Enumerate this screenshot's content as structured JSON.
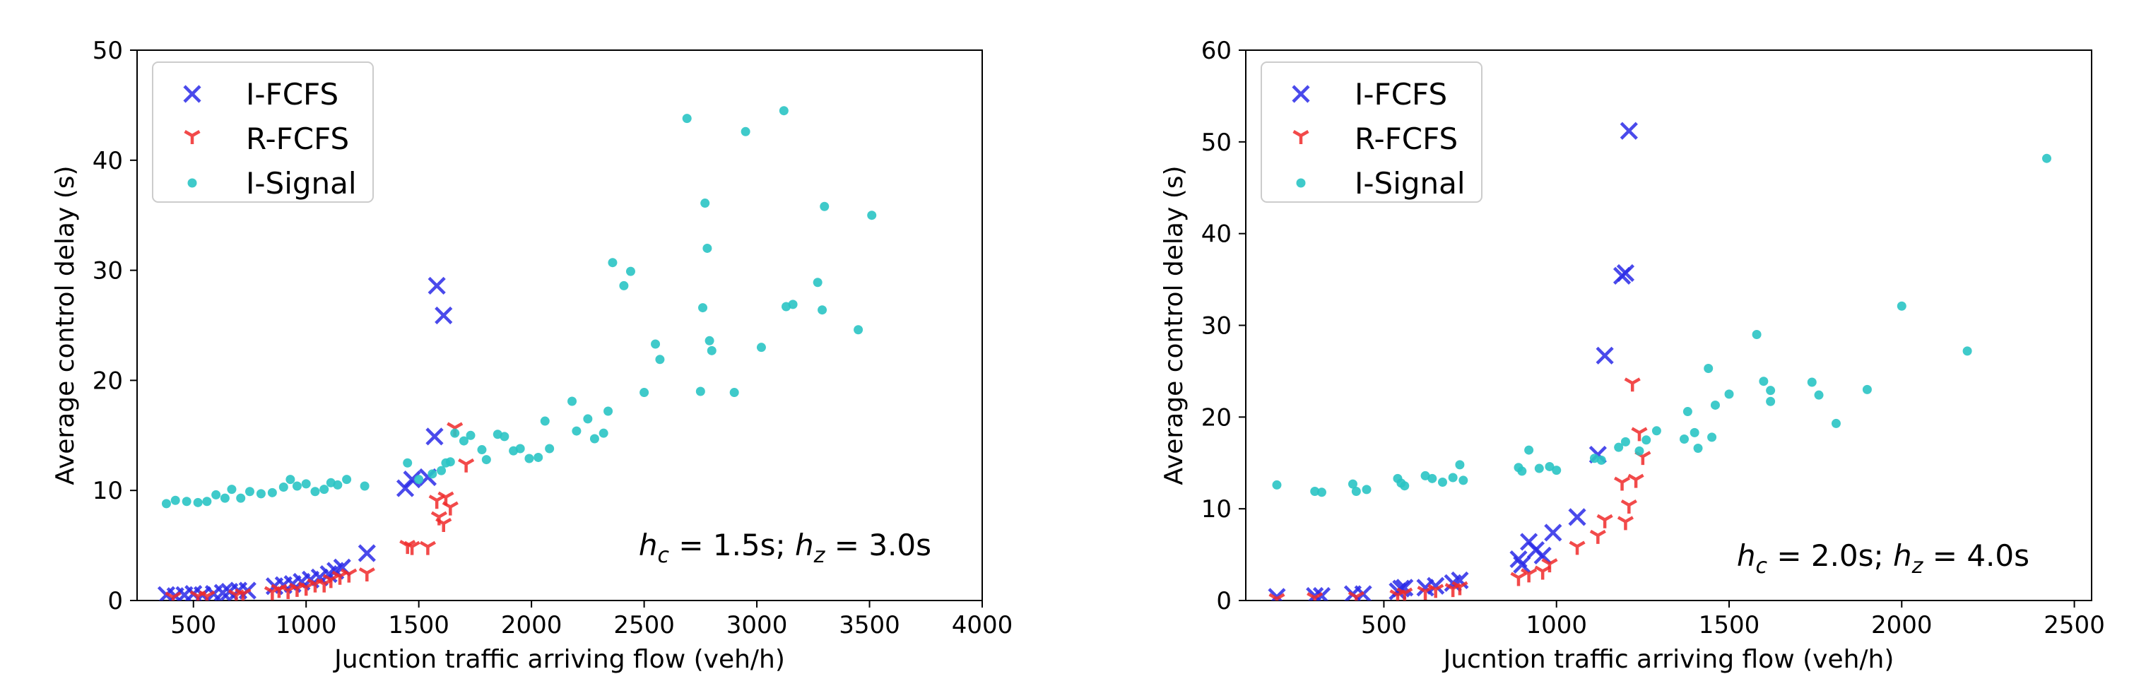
{
  "chart_data": [
    {
      "type": "scatter",
      "title": "",
      "xlabel": "Jucntion traffic arriving flow (veh/h)",
      "ylabel": "Average control delay (s)",
      "xlim": [
        250,
        4000
      ],
      "ylim": [
        0,
        50
      ],
      "xticks": [
        "500",
        "1000",
        "1500",
        "2000",
        "2500",
        "3000",
        "3500",
        "4000"
      ],
      "yticks": [
        "0",
        "10",
        "20",
        "30",
        "40",
        "50"
      ],
      "grid": false,
      "legend_position": "top-left",
      "annotation": {
        "parts": [
          {
            "text": "h",
            "italic": true
          },
          {
            "text": "c",
            "sub": true,
            "italic": true
          },
          {
            "text": " = 1.5s; "
          },
          {
            "text": "h",
            "italic": true
          },
          {
            "text": "z",
            "sub": true,
            "italic": true
          },
          {
            "text": " = 3.0s"
          }
        ]
      },
      "series": [
        {
          "name": "I-FCFS",
          "marker": "x",
          "color": "#2a2ae8",
          "points": [
            [
              380,
              0.5
            ],
            [
              420,
              0.4
            ],
            [
              460,
              0.5
            ],
            [
              500,
              0.6
            ],
            [
              540,
              0.5
            ],
            [
              590,
              0.6
            ],
            [
              630,
              0.7
            ],
            [
              660,
              0.8
            ],
            [
              700,
              0.9
            ],
            [
              740,
              0.9
            ],
            [
              860,
              1.3
            ],
            [
              900,
              1.4
            ],
            [
              940,
              1.5
            ],
            [
              980,
              1.7
            ],
            [
              1020,
              1.9
            ],
            [
              1060,
              2.1
            ],
            [
              1100,
              2.4
            ],
            [
              1130,
              2.7
            ],
            [
              1160,
              3.0
            ],
            [
              1270,
              4.3
            ],
            [
              1440,
              10.2
            ],
            [
              1470,
              11.0
            ],
            [
              1540,
              11.2
            ],
            [
              1570,
              14.9
            ],
            [
              1580,
              28.6
            ],
            [
              1610,
              25.9
            ]
          ]
        },
        {
          "name": "R-FCFS",
          "marker": "tri_down",
          "color": "#f02a2a",
          "points": [
            [
              410,
              0.3
            ],
            [
              520,
              0.4
            ],
            [
              560,
              0.4
            ],
            [
              690,
              0.5
            ],
            [
              720,
              0.6
            ],
            [
              850,
              0.8
            ],
            [
              880,
              1.0
            ],
            [
              920,
              0.9
            ],
            [
              960,
              1.1
            ],
            [
              1000,
              1.2
            ],
            [
              1040,
              1.5
            ],
            [
              1080,
              1.5
            ],
            [
              1110,
              1.9
            ],
            [
              1150,
              2.2
            ],
            [
              1190,
              2.4
            ],
            [
              1270,
              2.5
            ],
            [
              1450,
              5.0
            ],
            [
              1470,
              4.9
            ],
            [
              1540,
              4.9
            ],
            [
              1580,
              9.1
            ],
            [
              1590,
              7.6
            ],
            [
              1610,
              7.0
            ],
            [
              1620,
              9.4
            ],
            [
              1640,
              8.5
            ],
            [
              1660,
              15.7
            ],
            [
              1710,
              12.4
            ]
          ]
        },
        {
          "name": "I-Signal",
          "marker": "dot",
          "color": "#2ac4c4",
          "points": [
            [
              380,
              8.8
            ],
            [
              420,
              9.1
            ],
            [
              470,
              9.0
            ],
            [
              520,
              8.9
            ],
            [
              560,
              9.0
            ],
            [
              600,
              9.6
            ],
            [
              640,
              9.3
            ],
            [
              670,
              10.1
            ],
            [
              710,
              9.3
            ],
            [
              750,
              9.9
            ],
            [
              800,
              9.7
            ],
            [
              850,
              9.8
            ],
            [
              900,
              10.3
            ],
            [
              930,
              11.0
            ],
            [
              960,
              10.4
            ],
            [
              1000,
              10.6
            ],
            [
              1040,
              9.9
            ],
            [
              1080,
              10.1
            ],
            [
              1110,
              10.7
            ],
            [
              1140,
              10.5
            ],
            [
              1180,
              11.0
            ],
            [
              1260,
              10.4
            ],
            [
              1450,
              12.5
            ],
            [
              1500,
              11.0
            ],
            [
              1560,
              11.5
            ],
            [
              1600,
              11.8
            ],
            [
              1620,
              12.5
            ],
            [
              1640,
              12.6
            ],
            [
              1660,
              15.2
            ],
            [
              1700,
              14.5
            ],
            [
              1730,
              15.0
            ],
            [
              1780,
              13.7
            ],
            [
              1800,
              12.8
            ],
            [
              1850,
              15.1
            ],
            [
              1880,
              14.9
            ],
            [
              1920,
              13.6
            ],
            [
              1950,
              13.8
            ],
            [
              1990,
              12.9
            ],
            [
              2030,
              13.0
            ],
            [
              2060,
              16.3
            ],
            [
              2080,
              13.8
            ],
            [
              2180,
              18.1
            ],
            [
              2200,
              15.4
            ],
            [
              2250,
              16.5
            ],
            [
              2280,
              14.7
            ],
            [
              2320,
              15.2
            ],
            [
              2340,
              17.2
            ],
            [
              2360,
              30.7
            ],
            [
              2410,
              28.6
            ],
            [
              2440,
              29.9
            ],
            [
              2500,
              18.9
            ],
            [
              2550,
              23.3
            ],
            [
              2570,
              21.9
            ],
            [
              2690,
              43.8
            ],
            [
              2750,
              19.0
            ],
            [
              2760,
              26.6
            ],
            [
              2770,
              36.1
            ],
            [
              2780,
              32.0
            ],
            [
              2790,
              23.6
            ],
            [
              2800,
              22.7
            ],
            [
              2900,
              18.9
            ],
            [
              2950,
              42.6
            ],
            [
              3020,
              23.0
            ],
            [
              3120,
              44.5
            ],
            [
              3130,
              26.7
            ],
            [
              3160,
              26.9
            ],
            [
              3270,
              28.9
            ],
            [
              3290,
              26.4
            ],
            [
              3300,
              35.8
            ],
            [
              3450,
              24.6
            ],
            [
              3510,
              35.0
            ]
          ]
        }
      ]
    },
    {
      "type": "scatter",
      "title": "",
      "xlabel": "Jucntion traffic arriving flow (veh/h)",
      "ylabel": "Average control delay (s)",
      "xlim": [
        100,
        2550
      ],
      "ylim": [
        0,
        60
      ],
      "xticks": [
        "500",
        "1000",
        "1500",
        "2000",
        "2500"
      ],
      "yticks": [
        "0",
        "10",
        "20",
        "30",
        "40",
        "50",
        "60"
      ],
      "grid": false,
      "legend_position": "top-left",
      "annotation": {
        "parts": [
          {
            "text": "h",
            "italic": true
          },
          {
            "text": "c",
            "sub": true,
            "italic": true
          },
          {
            "text": " = 2.0s; "
          },
          {
            "text": "h",
            "italic": true
          },
          {
            "text": "z",
            "sub": true,
            "italic": true
          },
          {
            "text": " = 4.0s"
          }
        ]
      },
      "series": [
        {
          "name": "I-FCFS",
          "marker": "x",
          "color": "#2a2ae8",
          "points": [
            [
              190,
              0.4
            ],
            [
              300,
              0.5
            ],
            [
              320,
              0.5
            ],
            [
              410,
              0.7
            ],
            [
              440,
              0.7
            ],
            [
              540,
              1.0
            ],
            [
              550,
              1.3
            ],
            [
              560,
              1.4
            ],
            [
              620,
              1.4
            ],
            [
              650,
              1.6
            ],
            [
              700,
              1.9
            ],
            [
              720,
              2.2
            ],
            [
              890,
              4.5
            ],
            [
              900,
              3.9
            ],
            [
              920,
              6.4
            ],
            [
              940,
              5.5
            ],
            [
              960,
              4.9
            ],
            [
              990,
              7.4
            ],
            [
              1060,
              9.1
            ],
            [
              1120,
              15.9
            ],
            [
              1140,
              26.7
            ],
            [
              1190,
              35.4
            ],
            [
              1200,
              35.7
            ],
            [
              1210,
              51.2
            ]
          ]
        },
        {
          "name": "R-FCFS",
          "marker": "tri_down",
          "color": "#f02a2a",
          "points": [
            [
              190,
              0.2
            ],
            [
              300,
              0.3
            ],
            [
              420,
              0.4
            ],
            [
              540,
              0.6
            ],
            [
              560,
              0.8
            ],
            [
              620,
              1.0
            ],
            [
              650,
              1.2
            ],
            [
              700,
              1.3
            ],
            [
              720,
              1.5
            ],
            [
              890,
              2.5
            ],
            [
              920,
              2.9
            ],
            [
              960,
              3.2
            ],
            [
              980,
              4.0
            ],
            [
              1060,
              5.9
            ],
            [
              1120,
              7.1
            ],
            [
              1140,
              8.8
            ],
            [
              1190,
              12.9
            ],
            [
              1200,
              8.6
            ],
            [
              1210,
              10.4
            ],
            [
              1220,
              23.7
            ],
            [
              1230,
              13.2
            ],
            [
              1240,
              18.3
            ],
            [
              1250,
              15.7
            ]
          ]
        },
        {
          "name": "I-Signal",
          "marker": "dot",
          "color": "#2ac4c4",
          "points": [
            [
              190,
              12.6
            ],
            [
              300,
              11.9
            ],
            [
              320,
              11.8
            ],
            [
              410,
              12.7
            ],
            [
              420,
              11.9
            ],
            [
              450,
              12.1
            ],
            [
              540,
              13.3
            ],
            [
              550,
              12.8
            ],
            [
              560,
              12.5
            ],
            [
              620,
              13.6
            ],
            [
              640,
              13.3
            ],
            [
              670,
              12.9
            ],
            [
              700,
              13.4
            ],
            [
              720,
              14.8
            ],
            [
              730,
              13.1
            ],
            [
              890,
              14.5
            ],
            [
              900,
              14.1
            ],
            [
              920,
              16.4
            ],
            [
              950,
              14.4
            ],
            [
              980,
              14.6
            ],
            [
              1000,
              14.2
            ],
            [
              1110,
              15.5
            ],
            [
              1130,
              15.3
            ],
            [
              1180,
              16.7
            ],
            [
              1200,
              17.3
            ],
            [
              1240,
              16.3
            ],
            [
              1260,
              17.5
            ],
            [
              1290,
              18.5
            ],
            [
              1370,
              17.6
            ],
            [
              1380,
              20.6
            ],
            [
              1400,
              18.3
            ],
            [
              1410,
              16.6
            ],
            [
              1440,
              25.3
            ],
            [
              1450,
              17.8
            ],
            [
              1460,
              21.3
            ],
            [
              1500,
              22.5
            ],
            [
              1580,
              29.0
            ],
            [
              1600,
              23.9
            ],
            [
              1620,
              21.7
            ],
            [
              1620,
              22.9
            ],
            [
              1740,
              23.8
            ],
            [
              1760,
              22.4
            ],
            [
              1810,
              19.3
            ],
            [
              1900,
              23.0
            ],
            [
              2000,
              32.1
            ],
            [
              2190,
              27.2
            ],
            [
              2420,
              48.2
            ]
          ]
        }
      ]
    }
  ]
}
